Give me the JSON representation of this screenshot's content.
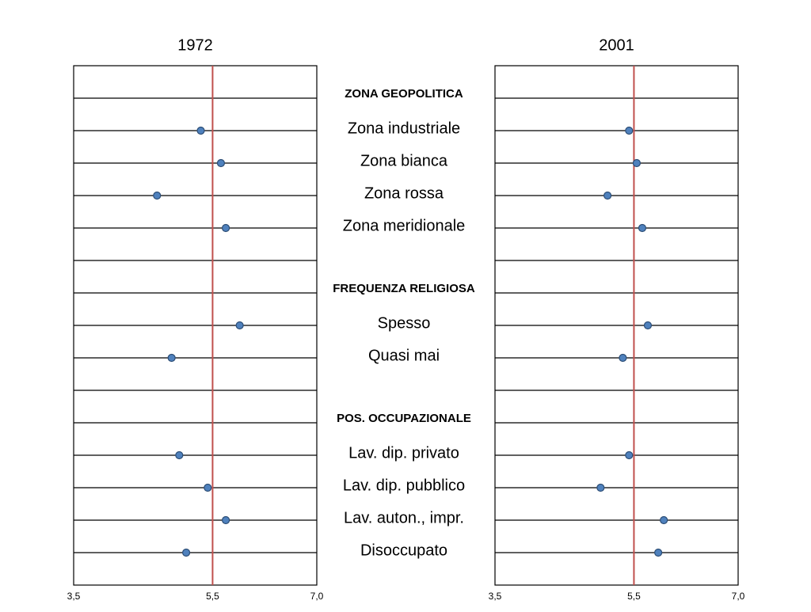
{
  "chart_data": {
    "type": "dot",
    "categories": [
      null,
      "ZONA GEOPOLITICA",
      "Zona industriale",
      "Zona bianca",
      "Zona rossa",
      "Zona meridionale",
      null,
      "FREQUENZA RELIGIOSA",
      "Spesso",
      "Quasi mai",
      null,
      "POS. OCCUPAZIONALE",
      "Lav. dip. privato",
      "Lav. dip. pubblico",
      "Lav. auton., impr.",
      "Disoccupato"
    ],
    "color": "#4f81bd",
    "reference_line": {
      "value": 5.5,
      "color": "#c0504d"
    },
    "panels": [
      {
        "title": "1972",
        "xlim": [
          3.5,
          7.0
        ],
        "xticks": [
          {
            "value": 3.5,
            "label": "3,5"
          },
          {
            "value": 5.5,
            "label": "5,5"
          },
          {
            "value": 7.0,
            "label": "7,0"
          }
        ],
        "values": [
          null,
          null,
          5.33,
          5.62,
          4.7,
          5.69,
          null,
          null,
          5.89,
          4.91,
          null,
          null,
          5.02,
          5.43,
          5.69,
          5.12
        ]
      },
      {
        "title": "2001",
        "xlim": [
          3.5,
          7.0
        ],
        "xticks": [
          {
            "value": 3.5,
            "label": "3,5"
          },
          {
            "value": 5.5,
            "label": "5,5"
          },
          {
            "value": 7.0,
            "label": "7,0"
          }
        ],
        "values": [
          null,
          null,
          5.43,
          5.54,
          5.12,
          5.62,
          null,
          null,
          5.7,
          5.34,
          null,
          null,
          5.43,
          5.02,
          5.93,
          5.85
        ]
      }
    ]
  }
}
